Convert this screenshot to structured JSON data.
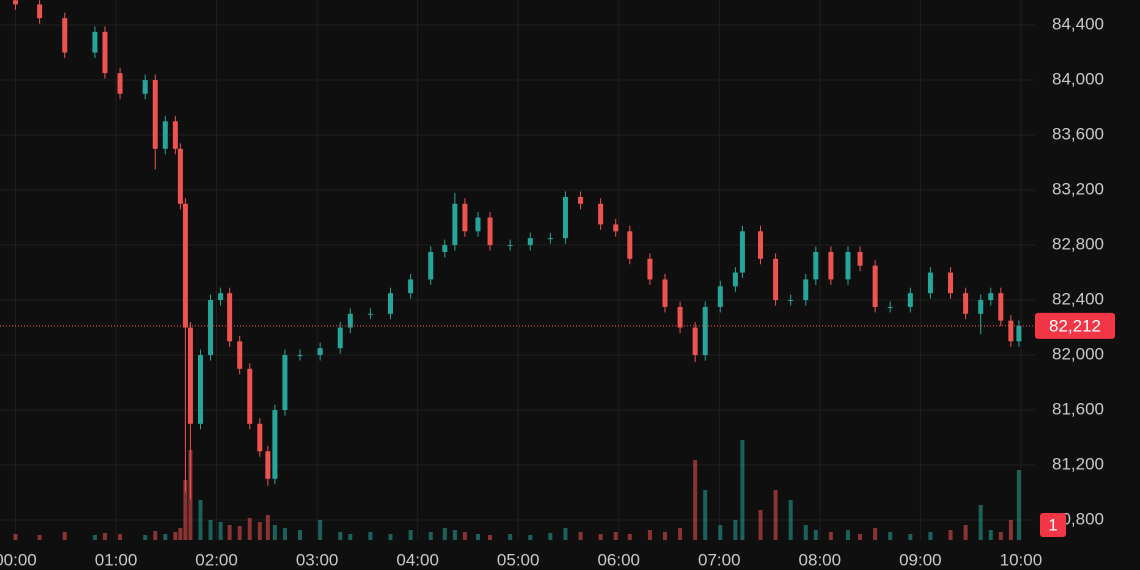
{
  "chart_data": {
    "type": "candlestick",
    "up_color": "#26a69a",
    "down_color": "#ef5350",
    "grid": true,
    "xlim": [
      -0.154,
      10.14
    ],
    "xticks": [
      {
        "value": 0,
        "label": "00:00"
      },
      {
        "value": 1,
        "label": "01:00"
      },
      {
        "value": 2,
        "label": "02:00"
      },
      {
        "value": 3,
        "label": "03:00"
      },
      {
        "value": 4,
        "label": "04:00"
      },
      {
        "value": 5,
        "label": "05:00"
      },
      {
        "value": 6,
        "label": "06:00"
      },
      {
        "value": 7,
        "label": "07:00"
      },
      {
        "value": 8,
        "label": "08:00"
      },
      {
        "value": 9,
        "label": "09:00"
      },
      {
        "value": 10,
        "label": "10:00"
      }
    ],
    "ylim": [
      80655,
      84582
    ],
    "yticks": [
      {
        "value": 80800,
        "label": "80,800"
      },
      {
        "value": 81200,
        "label": "81,200"
      },
      {
        "value": 81600,
        "label": "81,600"
      },
      {
        "value": 82000,
        "label": "82,000"
      },
      {
        "value": 82400,
        "label": "82,400"
      },
      {
        "value": 82800,
        "label": "82,800"
      },
      {
        "value": 83200,
        "label": "83,200"
      },
      {
        "value": 83600,
        "label": "83,600"
      },
      {
        "value": 84000,
        "label": "84,000"
      },
      {
        "value": 84400,
        "label": "84,400"
      }
    ],
    "last_price": {
      "value": 82212,
      "label": "82,212"
    },
    "volume_label": "1",
    "x": [
      0,
      0.24,
      0.49,
      0.79,
      0.89,
      1.04,
      1.29,
      1.39,
      1.49,
      1.59,
      1.64,
      1.69,
      1.74,
      1.84,
      1.94,
      2.04,
      2.13,
      2.23,
      2.33,
      2.43,
      2.51,
      2.58,
      2.68,
      2.83,
      3.03,
      3.23,
      3.33,
      3.53,
      3.73,
      3.93,
      4.13,
      4.27,
      4.37,
      4.47,
      4.6,
      4.72,
      4.92,
      5.12,
      5.32,
      5.47,
      5.62,
      5.82,
      5.97,
      6.11,
      6.31,
      6.46,
      6.61,
      6.76,
      6.86,
      7.01,
      7.16,
      7.23,
      7.41,
      7.56,
      7.71,
      7.86,
      7.96,
      8.11,
      8.28,
      8.4,
      8.55,
      8.7,
      8.9,
      9.1,
      9.3,
      9.45,
      9.6,
      9.7,
      9.8,
      9.9,
      9.98
    ],
    "open": [
      84580,
      84550,
      84450,
      84200,
      84350,
      84050,
      83900,
      84000,
      83500,
      83700,
      83500,
      83100,
      82200,
      81500,
      82000,
      82400,
      82450,
      82100,
      81900,
      81500,
      81300,
      81100,
      81600,
      82000,
      82000,
      82050,
      82200,
      82300,
      82300,
      82450,
      82550,
      82750,
      82800,
      83100,
      82900,
      83000,
      82800,
      82800,
      82850,
      82850,
      83150,
      83100,
      82950,
      82900,
      82700,
      82550,
      82350,
      82200,
      82000,
      82350,
      82500,
      82600,
      82900,
      82700,
      82400,
      82400,
      82550,
      82750,
      82550,
      82750,
      82650,
      82350,
      82350,
      82450,
      82600,
      82450,
      82300,
      82400,
      82450,
      82250,
      82100
    ],
    "high": [
      84620,
      84590,
      84490,
      84390,
      84390,
      84090,
      84040,
      84040,
      83740,
      83740,
      83540,
      83140,
      82240,
      82040,
      82440,
      82490,
      82490,
      82140,
      81940,
      81540,
      81340,
      81640,
      82040,
      82040,
      82090,
      82240,
      82340,
      82340,
      82490,
      82590,
      82790,
      82840,
      83180,
      83140,
      83040,
      83040,
      82840,
      82890,
      82890,
      83190,
      83190,
      83140,
      82990,
      82940,
      82740,
      82590,
      82390,
      82240,
      82390,
      82540,
      82640,
      82940,
      82940,
      82740,
      82440,
      82590,
      82790,
      82790,
      82790,
      82790,
      82690,
      82390,
      82490,
      82640,
      82640,
      82490,
      82440,
      82490,
      82490,
      82290,
      82252
    ],
    "low": [
      84510,
      84410,
      84160,
      84160,
      84010,
      83860,
      83860,
      83350,
      83460,
      83460,
      83060,
      81000,
      80950,
      81460,
      81960,
      82360,
      82060,
      81860,
      81460,
      81260,
      81050,
      81060,
      81560,
      81960,
      81960,
      82010,
      82160,
      82260,
      82260,
      82410,
      82510,
      82710,
      82760,
      82860,
      82860,
      82760,
      82760,
      82760,
      82810,
      82810,
      83060,
      82910,
      82860,
      82660,
      82510,
      82310,
      82160,
      81950,
      81960,
      82310,
      82460,
      82560,
      82660,
      82360,
      82360,
      82360,
      82510,
      82510,
      82510,
      82610,
      82310,
      82310,
      82310,
      82410,
      82410,
      82260,
      82150,
      82360,
      82210,
      82060,
      82060
    ],
    "close": [
      84550,
      84450,
      84200,
      84350,
      84050,
      83900,
      84000,
      83500,
      83700,
      83500,
      83100,
      82200,
      81500,
      82000,
      82400,
      82450,
      82100,
      81900,
      81500,
      81300,
      81100,
      81600,
      82000,
      82000,
      82050,
      82200,
      82300,
      82300,
      82450,
      82550,
      82750,
      82800,
      83100,
      82900,
      83000,
      82800,
      82800,
      82850,
      82850,
      83150,
      83100,
      82950,
      82900,
      82700,
      82550,
      82350,
      82200,
      82000,
      82350,
      82500,
      82600,
      82900,
      82700,
      82400,
      82400,
      82550,
      82750,
      82550,
      82750,
      82650,
      82350,
      82350,
      82450,
      82600,
      82450,
      82300,
      82400,
      82450,
      82250,
      82100,
      82212
    ],
    "volume": [
      6,
      5,
      8,
      5,
      7,
      6,
      5,
      9,
      6,
      8,
      12,
      60,
      90,
      40,
      20,
      18,
      15,
      14,
      22,
      18,
      25,
      15,
      12,
      10,
      20,
      8,
      6,
      8,
      6,
      10,
      8,
      12,
      10,
      8,
      6,
      5,
      6,
      5,
      7,
      12,
      8,
      6,
      8,
      6,
      10,
      8,
      12,
      80,
      50,
      15,
      20,
      100,
      30,
      50,
      40,
      15,
      10,
      8,
      10,
      6,
      12,
      8,
      6,
      8,
      10,
      15,
      35,
      10,
      8,
      20,
      70
    ]
  }
}
